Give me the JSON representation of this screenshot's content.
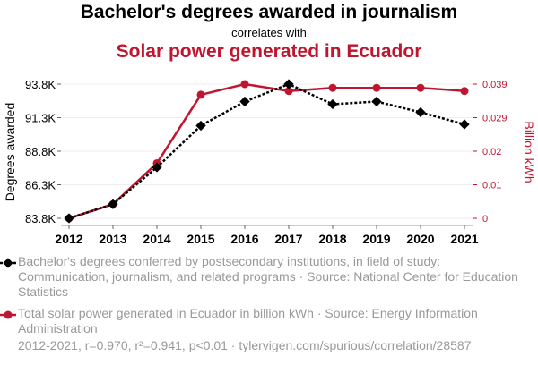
{
  "chart_data": {
    "type": "line",
    "title": "Bachelor's degrees awarded in journalism",
    "subtitle": "correlates with",
    "title2": "Solar power generated in Ecuador",
    "x": [
      2012,
      2013,
      2014,
      2015,
      2016,
      2017,
      2018,
      2019,
      2020,
      2021
    ],
    "series": [
      {
        "name": "Bachelor's degrees conferred by postsecondary institutions, in field of study: Communication, journalism, and related programs · Source: National Center for Education Statistics",
        "axis": "left",
        "color": "#000000",
        "values": [
          83800,
          84850,
          87600,
          90700,
          92500,
          93800,
          92300,
          92500,
          91700,
          90800
        ]
      },
      {
        "name": "Total solar power generated in Ecuador in billion kWh · Source: Energy Information Administration",
        "axis": "right",
        "color": "#c0152f",
        "values": [
          0.0,
          0.0041,
          0.016,
          0.0359,
          0.039,
          0.037,
          0.0379,
          0.0379,
          0.0379,
          0.037
        ]
      }
    ],
    "ylabel": "Degrees awarded",
    "ylabel_right": "Billion kWh",
    "ylim": [
      83800,
      93800
    ],
    "ylim_right": [
      0,
      0.039
    ],
    "yticks": [
      "93.8K",
      "91.3K",
      "88.8K",
      "86.3K",
      "83.8K"
    ],
    "yticks_right": [
      "0.039",
      "0.029",
      "0.02",
      "0.01",
      "0"
    ],
    "grid": true
  },
  "legend": [
    "Bachelor's degrees conferred by postsecondary institutions, in field of study: Communication, journalism, and related programs · Source: National Center for Education Statistics",
    "Total solar power generated in Ecuador in billion kWh · Source: Energy Information Administration"
  ],
  "footer": "2012-2021, r=0.970, r²=0.941, p<0.01 · tylervigen.com/spurious/correlation/28587"
}
